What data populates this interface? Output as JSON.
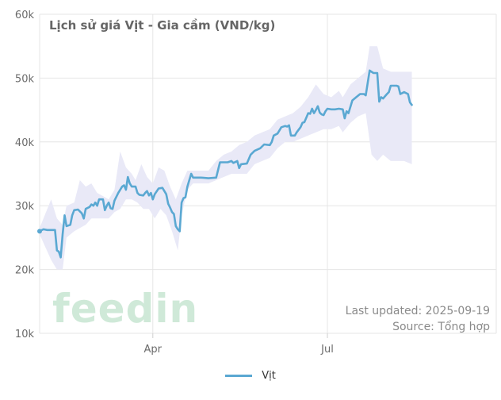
{
  "title": "Lịch sử giá Vịt - Gia cầm (VND/kg)",
  "colors": {
    "line": "#5aa8d2",
    "band": "#e9e9f7",
    "grid": "#e6e6e6",
    "logo": "#cfe9d8"
  },
  "brand": {
    "logo_text": "feedin"
  },
  "footnote": {
    "updated": "Last updated: 2025-09-19",
    "source": "Source: Tổng hợp"
  },
  "legend": {
    "items": [
      {
        "label": "Vịt"
      }
    ]
  },
  "chart_data": {
    "type": "line",
    "title": "Lịch sử giá Vịt - Gia cầm (VND/kg)",
    "x_ticks": [
      {
        "label": "Apr",
        "day": 59
      },
      {
        "label": "Jul",
        "day": 150
      }
    ],
    "x_range_days": [
      0,
      238
    ],
    "y_ticks": [
      {
        "value": 10000,
        "label": "10k"
      },
      {
        "value": 20000,
        "label": "20k"
      },
      {
        "value": 30000,
        "label": "30k"
      },
      {
        "value": 40000,
        "label": "40k"
      },
      {
        "value": 50000,
        "label": "50k"
      },
      {
        "value": 60000,
        "label": "60k"
      }
    ],
    "ylim": [
      10000,
      60000
    ],
    "grid": true,
    "legend_position": "bottom-center",
    "series": [
      {
        "name": "Vịt",
        "points": [
          [
            0,
            26000
          ],
          [
            2,
            26300
          ],
          [
            4,
            26200
          ],
          [
            8,
            26200
          ],
          [
            9,
            23000
          ],
          [
            10,
            22800
          ],
          [
            11,
            21900
          ],
          [
            12,
            25500
          ],
          [
            13,
            28500
          ],
          [
            14,
            26800
          ],
          [
            16,
            27000
          ],
          [
            17,
            28500
          ],
          [
            18,
            29300
          ],
          [
            20,
            29400
          ],
          [
            22,
            28800
          ],
          [
            23,
            28000
          ],
          [
            24,
            29500
          ],
          [
            26,
            29800
          ],
          [
            27,
            30200
          ],
          [
            28,
            30000
          ],
          [
            29,
            30500
          ],
          [
            30,
            30000
          ],
          [
            31,
            31000
          ],
          [
            33,
            31000
          ],
          [
            34,
            29300
          ],
          [
            35,
            30000
          ],
          [
            36,
            30500
          ],
          [
            37,
            29600
          ],
          [
            38,
            29500
          ],
          [
            39,
            30800
          ],
          [
            41,
            32000
          ],
          [
            43,
            33000
          ],
          [
            44,
            33200
          ],
          [
            45,
            32500
          ],
          [
            46,
            34500
          ],
          [
            47,
            33500
          ],
          [
            48,
            33000
          ],
          [
            50,
            33000
          ],
          [
            51,
            32000
          ],
          [
            52,
            31700
          ],
          [
            54,
            31600
          ],
          [
            55,
            32000
          ],
          [
            56,
            32300
          ],
          [
            57,
            31600
          ],
          [
            58,
            32000
          ],
          [
            59,
            31000
          ],
          [
            60,
            31800
          ],
          [
            62,
            32700
          ],
          [
            64,
            32800
          ],
          [
            66,
            31800
          ],
          [
            67,
            30300
          ],
          [
            68,
            29700
          ],
          [
            69,
            29000
          ],
          [
            70,
            28700
          ],
          [
            71,
            26800
          ],
          [
            72,
            26300
          ],
          [
            73,
            26000
          ],
          [
            74,
            30500
          ],
          [
            75,
            31200
          ],
          [
            76,
            31300
          ],
          [
            77,
            33000
          ],
          [
            78,
            34000
          ],
          [
            79,
            35000
          ],
          [
            80,
            34400
          ],
          [
            84,
            34400
          ],
          [
            88,
            34300
          ],
          [
            92,
            34400
          ],
          [
            94,
            36800
          ],
          [
            98,
            36800
          ],
          [
            100,
            37000
          ],
          [
            101,
            36700
          ],
          [
            103,
            37000
          ],
          [
            104,
            35900
          ],
          [
            105,
            36500
          ],
          [
            108,
            36600
          ],
          [
            110,
            38000
          ],
          [
            112,
            38600
          ],
          [
            115,
            39000
          ],
          [
            117,
            39600
          ],
          [
            120,
            39500
          ],
          [
            121,
            40000
          ],
          [
            122,
            41000
          ],
          [
            124,
            41300
          ],
          [
            126,
            42300
          ],
          [
            128,
            42500
          ],
          [
            129,
            42400
          ],
          [
            130,
            42600
          ],
          [
            131,
            41000
          ],
          [
            133,
            41000
          ],
          [
            134,
            41500
          ],
          [
            136,
            42300
          ],
          [
            137,
            43000
          ],
          [
            138,
            43100
          ],
          [
            139,
            43800
          ],
          [
            140,
            44500
          ],
          [
            141,
            44400
          ],
          [
            142,
            45200
          ],
          [
            143,
            44500
          ],
          [
            144,
            45000
          ],
          [
            145,
            45600
          ],
          [
            146,
            44600
          ],
          [
            147,
            44300
          ],
          [
            148,
            44200
          ],
          [
            149,
            44800
          ],
          [
            150,
            45200
          ],
          [
            152,
            45100
          ],
          [
            154,
            45100
          ],
          [
            156,
            45200
          ],
          [
            158,
            45100
          ],
          [
            159,
            43700
          ],
          [
            160,
            44800
          ],
          [
            161,
            44500
          ],
          [
            163,
            46500
          ],
          [
            165,
            47000
          ],
          [
            167,
            47500
          ],
          [
            169,
            47500
          ],
          [
            170,
            47300
          ],
          [
            172,
            51200
          ],
          [
            173,
            51000
          ],
          [
            174,
            50800
          ],
          [
            176,
            50800
          ],
          [
            177,
            46300
          ],
          [
            178,
            47000
          ],
          [
            179,
            46800
          ],
          [
            181,
            47500
          ],
          [
            182,
            47800
          ],
          [
            183,
            48800
          ],
          [
            186,
            48800
          ],
          [
            187,
            48700
          ],
          [
            188,
            47500
          ],
          [
            190,
            47800
          ],
          [
            192,
            47500
          ],
          [
            193,
            46200
          ],
          [
            194,
            45800
          ]
        ],
        "band_upper": [
          [
            0,
            26500
          ],
          [
            6,
            31000
          ],
          [
            9,
            28000
          ],
          [
            12,
            27000
          ],
          [
            14,
            30000
          ],
          [
            18,
            30500
          ],
          [
            21,
            34000
          ],
          [
            24,
            33000
          ],
          [
            27,
            33500
          ],
          [
            30,
            32000
          ],
          [
            33,
            31500
          ],
          [
            36,
            31000
          ],
          [
            39,
            32500
          ],
          [
            42,
            38500
          ],
          [
            45,
            36000
          ],
          [
            48,
            35000
          ],
          [
            50,
            34000
          ],
          [
            53,
            36500
          ],
          [
            56,
            34500
          ],
          [
            59,
            33500
          ],
          [
            62,
            36000
          ],
          [
            65,
            35500
          ],
          [
            68,
            33000
          ],
          [
            71,
            31000
          ],
          [
            74,
            33500
          ],
          [
            77,
            35500
          ],
          [
            80,
            35500
          ],
          [
            84,
            35500
          ],
          [
            88,
            35500
          ],
          [
            92,
            37000
          ],
          [
            96,
            38000
          ],
          [
            100,
            38500
          ],
          [
            104,
            39500
          ],
          [
            108,
            40000
          ],
          [
            112,
            41000
          ],
          [
            116,
            41500
          ],
          [
            120,
            42000
          ],
          [
            124,
            43500
          ],
          [
            128,
            44000
          ],
          [
            132,
            44500
          ],
          [
            136,
            45500
          ],
          [
            140,
            47000
          ],
          [
            144,
            49000
          ],
          [
            148,
            47500
          ],
          [
            152,
            47000
          ],
          [
            156,
            48000
          ],
          [
            158,
            47000
          ],
          [
            162,
            49000
          ],
          [
            166,
            50000
          ],
          [
            170,
            51000
          ],
          [
            172,
            55000
          ],
          [
            176,
            55000
          ],
          [
            179,
            51500
          ],
          [
            183,
            51000
          ],
          [
            187,
            51000
          ],
          [
            190,
            51000
          ],
          [
            194,
            51000
          ]
        ],
        "band_lower": [
          [
            0,
            25500
          ],
          [
            6,
            21500
          ],
          [
            9,
            20000
          ],
          [
            12,
            20000
          ],
          [
            14,
            25000
          ],
          [
            18,
            26000
          ],
          [
            21,
            26500
          ],
          [
            24,
            27000
          ],
          [
            27,
            28000
          ],
          [
            30,
            28000
          ],
          [
            33,
            28000
          ],
          [
            36,
            28000
          ],
          [
            39,
            29000
          ],
          [
            42,
            29500
          ],
          [
            45,
            31000
          ],
          [
            48,
            31000
          ],
          [
            51,
            30500
          ],
          [
            54,
            29500
          ],
          [
            57,
            29500
          ],
          [
            60,
            28000
          ],
          [
            63,
            29500
          ],
          [
            66,
            28500
          ],
          [
            69,
            26000
          ],
          [
            72,
            23000
          ],
          [
            74,
            28500
          ],
          [
            77,
            32500
          ],
          [
            80,
            33500
          ],
          [
            84,
            33500
          ],
          [
            88,
            33500
          ],
          [
            92,
            34000
          ],
          [
            96,
            34500
          ],
          [
            100,
            35000
          ],
          [
            104,
            35000
          ],
          [
            108,
            35000
          ],
          [
            112,
            36500
          ],
          [
            116,
            37000
          ],
          [
            120,
            37500
          ],
          [
            124,
            39000
          ],
          [
            128,
            40000
          ],
          [
            132,
            40000
          ],
          [
            136,
            40500
          ],
          [
            140,
            41000
          ],
          [
            144,
            41500
          ],
          [
            148,
            42000
          ],
          [
            152,
            42000
          ],
          [
            156,
            42500
          ],
          [
            158,
            41500
          ],
          [
            162,
            43000
          ],
          [
            166,
            44000
          ],
          [
            170,
            44500
          ],
          [
            173,
            38000
          ],
          [
            176,
            37000
          ],
          [
            179,
            38000
          ],
          [
            183,
            37000
          ],
          [
            187,
            37000
          ],
          [
            190,
            37000
          ],
          [
            194,
            36500
          ]
        ]
      }
    ]
  }
}
